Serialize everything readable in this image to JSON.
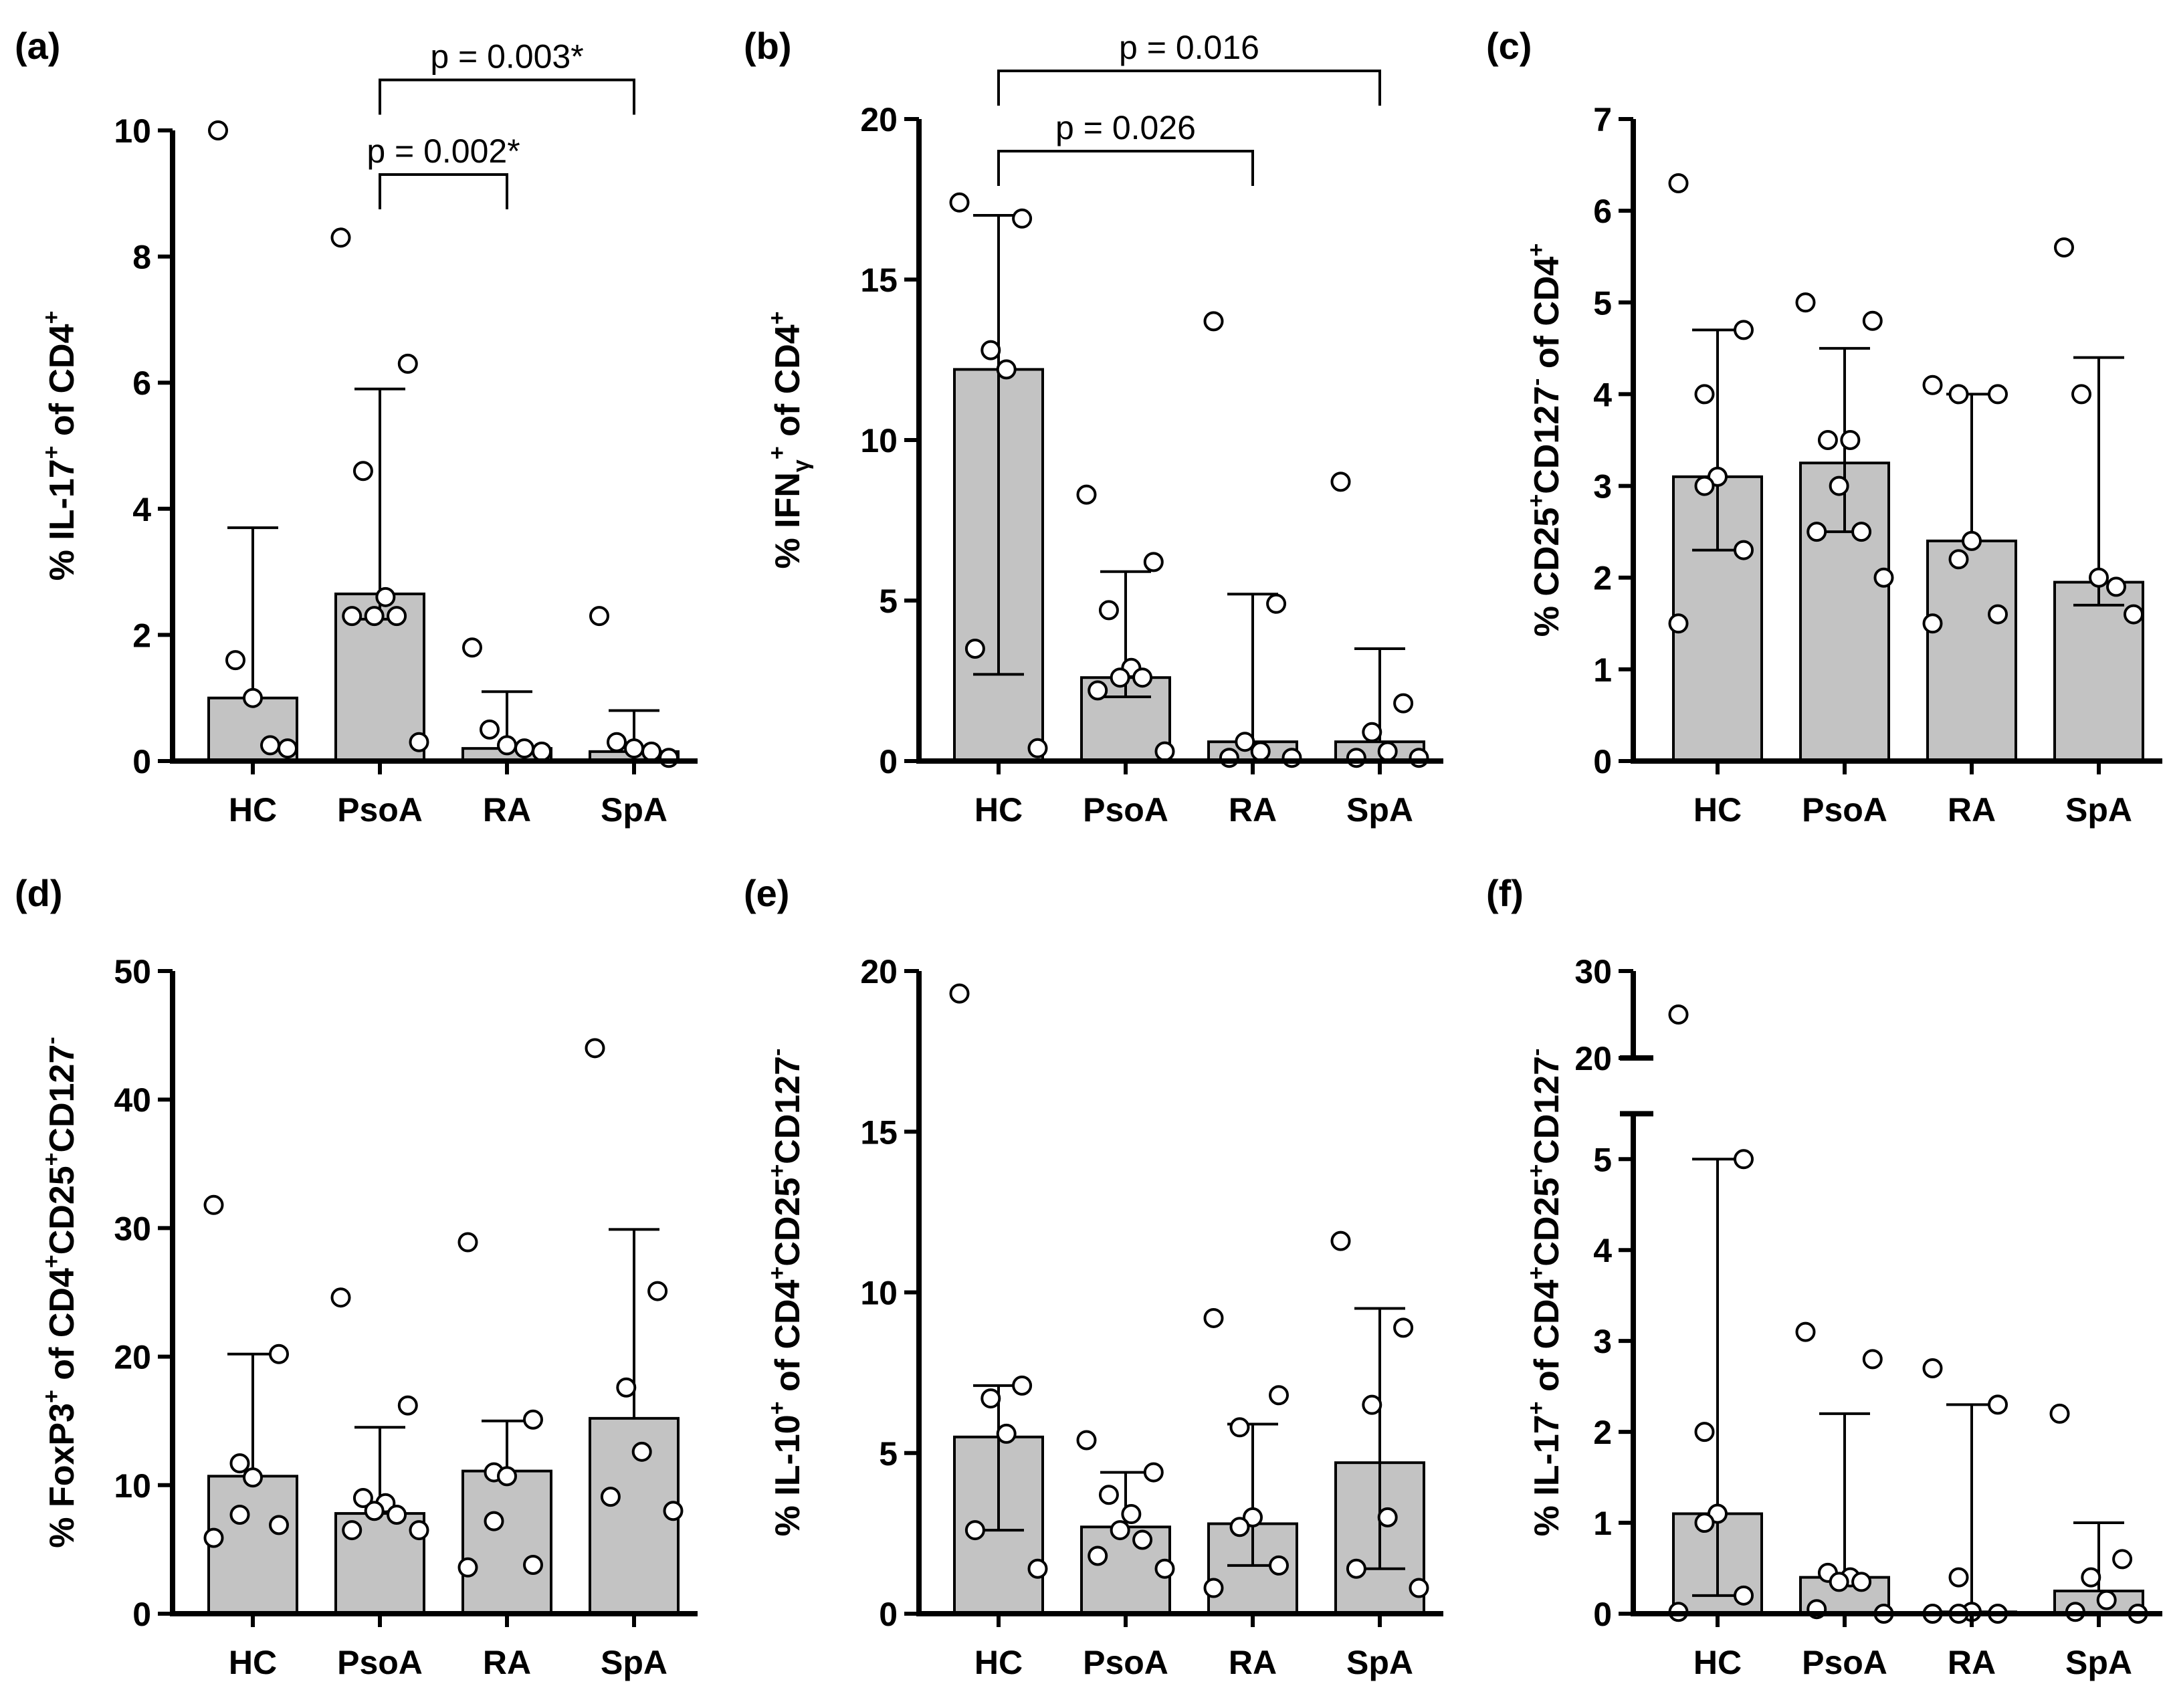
{
  "chart_data": [
    {
      "type": "bar",
      "panel_label": "(a)",
      "ylabel_parts": [
        [
          "% IL-17",
          ""
        ],
        [
          "+",
          "sup"
        ],
        [
          " of CD4",
          ""
        ],
        [
          "+",
          "sup"
        ]
      ],
      "categories": [
        "HC",
        "PsoA",
        "RA",
        "SpA"
      ],
      "values": [
        1.0,
        2.65,
        0.2,
        0.15
      ],
      "error_upper": [
        3.7,
        5.9,
        1.1,
        0.8
      ],
      "error_lower": [
        null,
        2.25,
        null,
        null
      ],
      "points": [
        [
          10.0,
          1.6,
          1.0,
          0.25,
          0.2
        ],
        [
          8.3,
          6.3,
          4.6,
          2.6,
          2.3,
          2.3,
          2.3,
          0.3
        ],
        [
          1.8,
          0.5,
          0.25,
          0.2,
          0.15
        ],
        [
          2.3,
          0.3,
          0.2,
          0.15,
          0.05
        ]
      ],
      "ylim": [
        0,
        10
      ],
      "yticks": [
        0,
        2,
        4,
        6,
        8,
        10
      ],
      "tick_labels": [
        "0",
        "2",
        "4",
        "6",
        "8",
        "10"
      ],
      "brackets": [
        {
          "from": 1,
          "to": 2,
          "value": 9.3,
          "label": "p = 0.002*"
        },
        {
          "from": 1,
          "to": 3,
          "value": 10.8,
          "label": "p = 0.003*"
        }
      ]
    },
    {
      "type": "bar",
      "panel_label": "(b)",
      "ylabel_parts": [
        [
          "% IFN",
          ""
        ],
        [
          "γ",
          "sub"
        ],
        [
          "+",
          "sup"
        ],
        [
          " of CD4",
          ""
        ],
        [
          "+",
          "sup"
        ]
      ],
      "categories": [
        "HC",
        "PsoA",
        "RA",
        "SpA"
      ],
      "values": [
        12.2,
        2.6,
        0.6,
        0.6
      ],
      "error_upper": [
        17.0,
        5.9,
        5.2,
        3.5
      ],
      "error_lower": [
        2.7,
        2.0,
        null,
        null
      ],
      "points": [
        [
          17.4,
          16.9,
          12.8,
          12.2,
          3.5,
          0.4
        ],
        [
          8.3,
          6.2,
          4.7,
          2.9,
          2.6,
          2.6,
          2.2,
          0.3
        ],
        [
          13.7,
          4.9,
          0.6,
          0.3,
          0.1,
          0.1
        ],
        [
          8.7,
          1.8,
          0.9,
          0.3,
          0.1,
          0.1
        ]
      ],
      "ylim": [
        0,
        20
      ],
      "yticks": [
        0,
        5,
        10,
        15,
        20
      ],
      "tick_labels": [
        "0",
        "5",
        "10",
        "15",
        "20"
      ],
      "brackets": [
        {
          "from": 0,
          "to": 2,
          "value": 19.0,
          "label": "p = 0.026"
        },
        {
          "from": 0,
          "to": 3,
          "value": 21.5,
          "label": "p = 0.016"
        }
      ]
    },
    {
      "type": "bar",
      "panel_label": "(c)",
      "ylabel_parts": [
        [
          "% CD25",
          ""
        ],
        [
          "+",
          "sup"
        ],
        [
          "CD127",
          ""
        ],
        [
          "-",
          "sup"
        ],
        [
          " of CD4",
          ""
        ],
        [
          "+",
          "sup"
        ]
      ],
      "categories": [
        "HC",
        "PsoA",
        "RA",
        "SpA"
      ],
      "values": [
        3.1,
        3.25,
        2.4,
        1.95
      ],
      "error_upper": [
        4.7,
        4.5,
        4.0,
        4.4
      ],
      "error_lower": [
        2.3,
        2.5,
        null,
        1.7
      ],
      "points": [
        [
          6.3,
          4.7,
          4.0,
          3.1,
          3.0,
          2.3,
          1.5
        ],
        [
          5.0,
          4.8,
          3.5,
          3.5,
          3.0,
          2.5,
          2.5,
          2.0
        ],
        [
          4.1,
          4.0,
          4.0,
          2.4,
          2.2,
          1.6,
          1.5
        ],
        [
          5.6,
          4.0,
          2.0,
          1.9,
          1.6
        ]
      ],
      "ylim": [
        0,
        7
      ],
      "yticks": [
        0,
        1,
        2,
        3,
        4,
        5,
        6,
        7
      ],
      "tick_labels": [
        "0",
        "1",
        "2",
        "3",
        "4",
        "5",
        "6",
        "7"
      ],
      "brackets": []
    },
    {
      "type": "bar",
      "panel_label": "(d)",
      "ylabel_parts": [
        [
          "% FoxP3",
          ""
        ],
        [
          "+",
          "sup"
        ],
        [
          " of CD4",
          ""
        ],
        [
          "+",
          "sup"
        ],
        [
          "CD25",
          ""
        ],
        [
          "+",
          "sup"
        ],
        [
          "CD127",
          ""
        ],
        [
          "-",
          "sup"
        ]
      ],
      "categories": [
        "HC",
        "PsoA",
        "RA",
        "SpA"
      ],
      "values": [
        10.7,
        7.8,
        11.1,
        15.2
      ],
      "error_upper": [
        20.2,
        14.5,
        15.0,
        29.9
      ],
      "error_lower": [
        null,
        null,
        null,
        null
      ],
      "points": [
        [
          31.8,
          20.2,
          11.7,
          10.6,
          7.7,
          6.9,
          5.9
        ],
        [
          24.6,
          16.2,
          9.0,
          8.6,
          8.0,
          7.7,
          6.5,
          6.5
        ],
        [
          28.9,
          15.1,
          11.0,
          10.7,
          7.2,
          3.8,
          3.6
        ],
        [
          44.0,
          25.1,
          17.6,
          12.6,
          9.1,
          8.0
        ]
      ],
      "ylim": [
        0,
        50
      ],
      "yticks": [
        0,
        10,
        20,
        30,
        40,
        50
      ],
      "tick_labels": [
        "0",
        "10",
        "20",
        "30",
        "40",
        "50"
      ],
      "brackets": []
    },
    {
      "type": "bar",
      "panel_label": "(e)",
      "ylabel_parts": [
        [
          "% IL-10",
          ""
        ],
        [
          "+",
          "sup"
        ],
        [
          " of CD4",
          ""
        ],
        [
          "+",
          "sup"
        ],
        [
          "CD25",
          ""
        ],
        [
          "+",
          "sup"
        ],
        [
          "CD127",
          ""
        ],
        [
          "-",
          "sup"
        ]
      ],
      "categories": [
        "HC",
        "PsoA",
        "RA",
        "SpA"
      ],
      "values": [
        5.5,
        2.7,
        2.8,
        4.7
      ],
      "error_upper": [
        7.1,
        4.4,
        5.9,
        9.5
      ],
      "error_lower": [
        2.6,
        null,
        1.5,
        1.4
      ],
      "points": [
        [
          19.3,
          7.1,
          6.7,
          5.6,
          2.6,
          1.4
        ],
        [
          5.4,
          4.4,
          3.7,
          3.1,
          2.6,
          2.3,
          1.8,
          1.4
        ],
        [
          9.2,
          6.8,
          5.8,
          3.0,
          2.7,
          1.5,
          0.8
        ],
        [
          11.6,
          8.9,
          6.5,
          3.0,
          1.4,
          0.8
        ]
      ],
      "ylim": [
        0,
        20
      ],
      "yticks": [
        0,
        5,
        10,
        15,
        20
      ],
      "tick_labels": [
        "0",
        "5",
        "10",
        "15",
        "20"
      ],
      "brackets": []
    },
    {
      "type": "bar",
      "panel_label": "(f)",
      "ylabel_parts": [
        [
          "% IL-17",
          ""
        ],
        [
          "+",
          "sup"
        ],
        [
          " of CD4",
          ""
        ],
        [
          "+",
          "sup"
        ],
        [
          "CD25",
          ""
        ],
        [
          "+",
          "sup"
        ],
        [
          "CD127",
          ""
        ],
        [
          "-",
          "sup"
        ]
      ],
      "categories": [
        "HC",
        "PsoA",
        "RA",
        "SpA"
      ],
      "values": [
        1.1,
        0.4,
        0.02,
        0.25
      ],
      "error_upper": [
        5.0,
        2.2,
        2.3,
        1.0
      ],
      "error_lower": [
        0.2,
        null,
        null,
        null
      ],
      "points": [
        [
          25.0,
          5.0,
          2.0,
          1.1,
          1.0,
          0.2,
          0.02
        ],
        [
          3.1,
          2.8,
          0.45,
          0.4,
          0.35,
          0.35,
          0.05,
          0.0
        ],
        [
          2.7,
          2.3,
          0.4,
          0.02,
          0.0,
          0.0,
          0.0
        ],
        [
          2.2,
          0.6,
          0.4,
          0.15,
          0.02,
          0.0
        ]
      ],
      "ylim": [
        0,
        30
      ],
      "axis_break": {
        "lower": [
          0,
          5.5
        ],
        "upper": [
          20,
          30
        ]
      },
      "yticks": [
        0,
        1,
        2,
        3,
        4,
        5,
        20,
        30
      ],
      "tick_labels": [
        "0",
        "1",
        "2",
        "3",
        "4",
        "5",
        "20",
        "30"
      ],
      "brackets": []
    }
  ]
}
